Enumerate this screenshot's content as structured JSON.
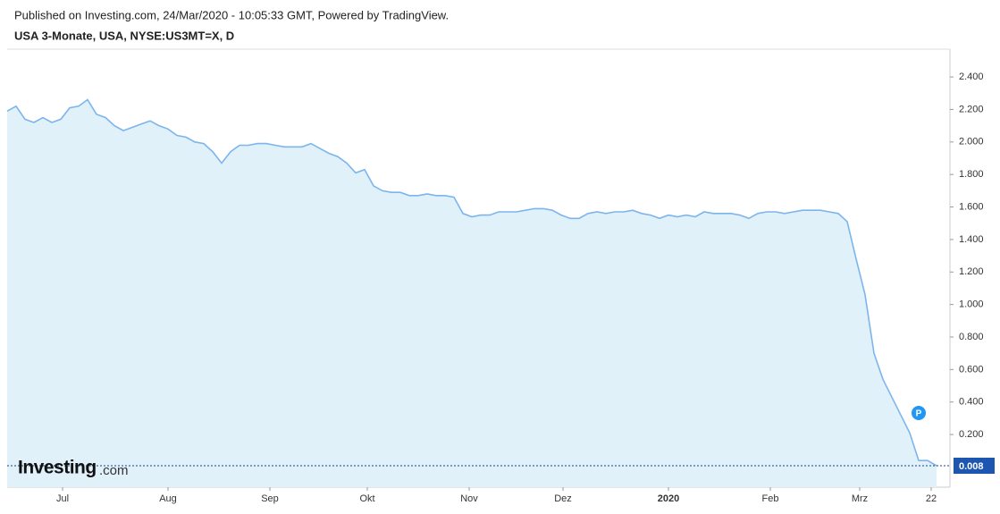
{
  "header": {
    "published": "Published on Investing.com, 24/Mar/2020 - 10:05:33 GMT, Powered by TradingView.",
    "symbol": "USA 3-Monate, USA, NYSE:US3MT=X, D"
  },
  "logo": {
    "brand": "Investing",
    "suffix": ".com"
  },
  "chart_data": {
    "type": "area",
    "title": "USA 3-Monate, USA, NYSE:US3MT=X, D",
    "series": [
      {
        "name": "US3MT=X",
        "color": "#7cb5ec",
        "values": [
          2.19,
          2.22,
          2.14,
          2.12,
          2.15,
          2.12,
          2.14,
          2.21,
          2.22,
          2.26,
          2.17,
          2.15,
          2.1,
          2.07,
          2.09,
          2.11,
          2.13,
          2.1,
          2.08,
          2.04,
          2.03,
          2.0,
          1.99,
          1.94,
          1.87,
          1.94,
          1.98,
          1.98,
          1.99,
          1.99,
          1.98,
          1.97,
          1.97,
          1.97,
          1.99,
          1.96,
          1.93,
          1.91,
          1.87,
          1.81,
          1.83,
          1.73,
          1.7,
          1.69,
          1.69,
          1.67,
          1.67,
          1.68,
          1.67,
          1.67,
          1.66,
          1.56,
          1.54,
          1.55,
          1.55,
          1.57,
          1.57,
          1.57,
          1.58,
          1.59,
          1.59,
          1.58,
          1.55,
          1.53,
          1.53,
          1.56,
          1.57,
          1.56,
          1.57,
          1.57,
          1.58,
          1.56,
          1.55,
          1.53,
          1.55,
          1.54,
          1.55,
          1.54,
          1.57,
          1.56,
          1.56,
          1.56,
          1.55,
          1.53,
          1.56,
          1.57,
          1.57,
          1.56,
          1.57,
          1.58,
          1.58,
          1.58,
          1.57,
          1.56,
          1.51,
          1.28,
          1.06,
          0.7,
          0.54,
          0.43,
          0.32,
          0.21,
          0.04,
          0.04,
          0.008
        ]
      }
    ],
    "last_price": {
      "value": 0.008,
      "label": "0.008"
    },
    "marker_label": "P",
    "xlim": [
      0,
      105.5
    ],
    "xticks": [
      {
        "value": 6.2,
        "label": "Jul"
      },
      {
        "value": 18,
        "label": "Aug"
      },
      {
        "value": 29.4,
        "label": "Sep"
      },
      {
        "value": 40.3,
        "label": "Okt"
      },
      {
        "value": 51.7,
        "label": "Nov"
      },
      {
        "value": 62.2,
        "label": "Dez"
      },
      {
        "value": 74,
        "label": "2020"
      },
      {
        "value": 85.4,
        "label": "Feb"
      },
      {
        "value": 95.4,
        "label": "Mrz"
      },
      {
        "value": 103.4,
        "label": "22"
      }
    ],
    "ylim": [
      -0.124,
      2.571
    ],
    "yticks": [
      {
        "value": 0.2,
        "label": "0.200"
      },
      {
        "value": 0.4,
        "label": "0.400"
      },
      {
        "value": 0.6,
        "label": "0.600"
      },
      {
        "value": 0.8,
        "label": "0.800"
      },
      {
        "value": 1.0,
        "label": "1.000"
      },
      {
        "value": 1.2,
        "label": "1.200"
      },
      {
        "value": 1.4,
        "label": "1.400"
      },
      {
        "value": 1.6,
        "label": "1.600"
      },
      {
        "value": 1.8,
        "label": "1.800"
      },
      {
        "value": 2.0,
        "label": "2.000"
      },
      {
        "value": 2.2,
        "label": "2.200"
      },
      {
        "value": 2.4,
        "label": "2.400"
      }
    ]
  }
}
